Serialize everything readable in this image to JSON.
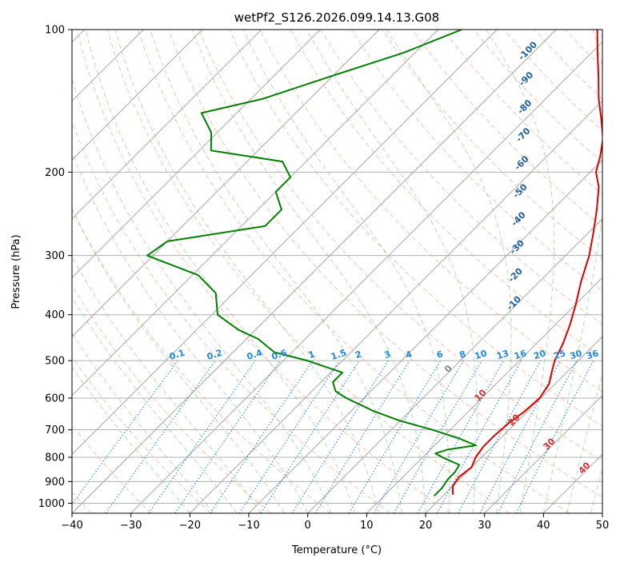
{
  "chart_data": {
    "type": "line",
    "title": "wetPf2_S126.2026.099.14.13.G08",
    "xlabel": "Temperature (°C)",
    "ylabel": "Pressure (hPa)",
    "xlim": [
      -40,
      50
    ],
    "ylim": [
      1050,
      100
    ],
    "yscale": "log",
    "grid": true,
    "x_ticks": [
      -40,
      -30,
      -20,
      -10,
      0,
      10,
      20,
      30,
      40,
      50
    ],
    "y_ticks": [
      100,
      200,
      300,
      400,
      500,
      600,
      700,
      800,
      900,
      1000
    ],
    "isotherm_skew": "45 degrees",
    "background_lines": {
      "isotherms": "gray solid",
      "dry_adiabats": "salmon dashed",
      "moist_adiabats": "green dashed",
      "mixing_ratio": "blue dotted"
    },
    "dry_adiabat_labels": [
      "-100",
      "-90",
      "-80",
      "-70",
      "-60",
      "-50",
      "-40",
      "-30",
      "-20",
      "-10"
    ],
    "dry_adiabat_values": [
      -100,
      -90,
      -80,
      -70,
      -60,
      -50,
      -40,
      -30,
      -20,
      -10
    ],
    "moist_adiabat_labels": [
      "0",
      "10",
      "20",
      "30",
      "40"
    ],
    "moist_adiabat_values": [
      0,
      10,
      20,
      30,
      40
    ],
    "mixing_ratio_labels": [
      "0.1",
      "0.2",
      "0.4",
      "0.6",
      "1",
      "1.5",
      "2",
      "3",
      "4",
      "6",
      "8",
      "10",
      "13",
      "16",
      "20",
      "25",
      "30",
      "36"
    ],
    "mixing_ratio_values": [
      0.1,
      0.2,
      0.4,
      0.6,
      1,
      1.5,
      2,
      3,
      4,
      6,
      8,
      10,
      13,
      16,
      20,
      25,
      30,
      36
    ],
    "series": [
      {
        "color": "#e00000",
        "points": [
          [
            960,
            21.5
          ],
          [
            920,
            20
          ],
          [
            880,
            19.5
          ],
          [
            840,
            20
          ],
          [
            800,
            19
          ],
          [
            760,
            18.5
          ],
          [
            720,
            18.5
          ],
          [
            680,
            18.8
          ],
          [
            640,
            19.5
          ],
          [
            600,
            19.8
          ],
          [
            560,
            19
          ],
          [
            530,
            17.5
          ],
          [
            500,
            16
          ],
          [
            460,
            14.5
          ],
          [
            420,
            12.5
          ],
          [
            380,
            10
          ],
          [
            340,
            7
          ],
          [
            300,
            4
          ],
          [
            270,
            1
          ],
          [
            240,
            -2.5
          ],
          [
            215,
            -6
          ],
          [
            200,
            -9
          ],
          [
            185,
            -11
          ],
          [
            170,
            -13.5
          ],
          [
            155,
            -17
          ],
          [
            140,
            -21
          ],
          [
            125,
            -25
          ],
          [
            112,
            -29
          ],
          [
            100,
            -33
          ]
        ]
      },
      {
        "color": "#008000",
        "points": [
          [
            965,
            18.5
          ],
          [
            930,
            18.5
          ],
          [
            890,
            18
          ],
          [
            860,
            18
          ],
          [
            830,
            17.5
          ],
          [
            805,
            14
          ],
          [
            785,
            11.5
          ],
          [
            770,
            13
          ],
          [
            755,
            17
          ],
          [
            730,
            13
          ],
          [
            700,
            7
          ],
          [
            670,
            0
          ],
          [
            640,
            -6
          ],
          [
            600,
            -13
          ],
          [
            580,
            -16
          ],
          [
            555,
            -18
          ],
          [
            530,
            -18
          ],
          [
            500,
            -26
          ],
          [
            480,
            -33
          ],
          [
            450,
            -38
          ],
          [
            430,
            -43
          ],
          [
            400,
            -49
          ],
          [
            360,
            -53
          ],
          [
            330,
            -59
          ],
          [
            300,
            -71
          ],
          [
            280,
            -70
          ],
          [
            260,
            -56
          ],
          [
            240,
            -56
          ],
          [
            220,
            -60
          ],
          [
            205,
            -60
          ],
          [
            190,
            -64
          ],
          [
            180,
            -78
          ],
          [
            165,
            -81
          ],
          [
            150,
            -86
          ],
          [
            140,
            -78
          ],
          [
            125,
            -70
          ],
          [
            112,
            -62
          ],
          [
            100,
            -56
          ]
        ]
      }
    ]
  }
}
